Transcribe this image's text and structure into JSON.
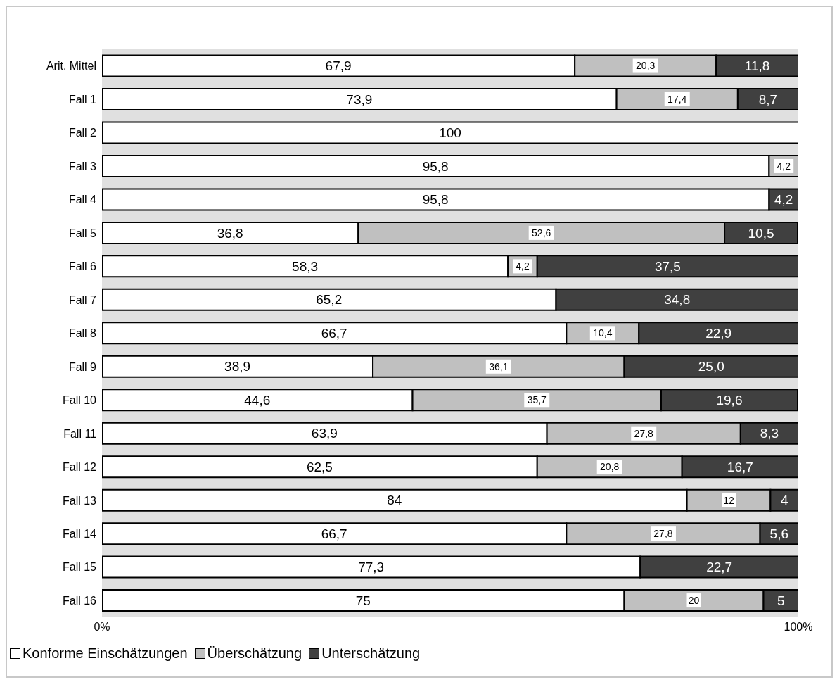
{
  "chart_data": {
    "type": "bar",
    "orientation": "horizontal",
    "stacked": true,
    "categories": [
      "Arit. Mittel",
      "Fall 1",
      "Fall 2",
      "Fall 3",
      "Fall 4",
      "Fall 5",
      "Fall 6",
      "Fall 7",
      "Fall 8",
      "Fall 9",
      "Fall 10",
      "Fall 11",
      "Fall 12",
      "Fall 13",
      "Fall 14",
      "Fall 15",
      "Fall 16"
    ],
    "series": [
      {
        "name": "Konforme Einschätzungen",
        "color": "#ffffff",
        "values": [
          67.9,
          73.9,
          100,
          95.8,
          95.8,
          36.8,
          58.3,
          65.2,
          66.7,
          38.9,
          44.6,
          63.9,
          62.5,
          84,
          66.7,
          77.3,
          75
        ],
        "value_labels": [
          "67,9",
          "73,9",
          "100",
          "95,8",
          "95,8",
          "36,8",
          "58,3",
          "65,2",
          "66,7",
          "38,9",
          "44,6",
          "63,9",
          "62,5",
          "84",
          "66,7",
          "77,3",
          "75"
        ]
      },
      {
        "name": "Überschätzung",
        "color": "#c0c0c0",
        "values": [
          20.3,
          17.4,
          null,
          4.2,
          null,
          52.6,
          4.2,
          null,
          10.4,
          36.1,
          35.7,
          27.8,
          20.8,
          12,
          27.8,
          null,
          20
        ],
        "value_labels": [
          "20,3",
          "17,4",
          null,
          "4,2",
          null,
          "52,6",
          "4,2",
          null,
          "10,4",
          "36,1",
          "35,7",
          "27,8",
          "20,8",
          "12",
          "27,8",
          null,
          "20"
        ]
      },
      {
        "name": "Unterschätzung",
        "color": "#404040",
        "values": [
          11.8,
          8.7,
          null,
          null,
          4.2,
          10.5,
          37.5,
          34.8,
          22.9,
          25,
          19.6,
          8.3,
          16.7,
          4,
          5.6,
          22.7,
          5
        ],
        "value_labels": [
          "11,8",
          "8,7",
          null,
          null,
          "4,2",
          "10,5",
          "37,5",
          "34,8",
          "22,9",
          "25,0",
          "19,6",
          "8,3",
          "16,7",
          "4",
          "5,6",
          "22,7",
          "5"
        ]
      }
    ],
    "xlim": [
      0,
      100
    ],
    "xticks": [
      {
        "value": 0,
        "label": "0%"
      },
      {
        "value": 100,
        "label": "100%"
      }
    ],
    "legend": "bottom left"
  }
}
